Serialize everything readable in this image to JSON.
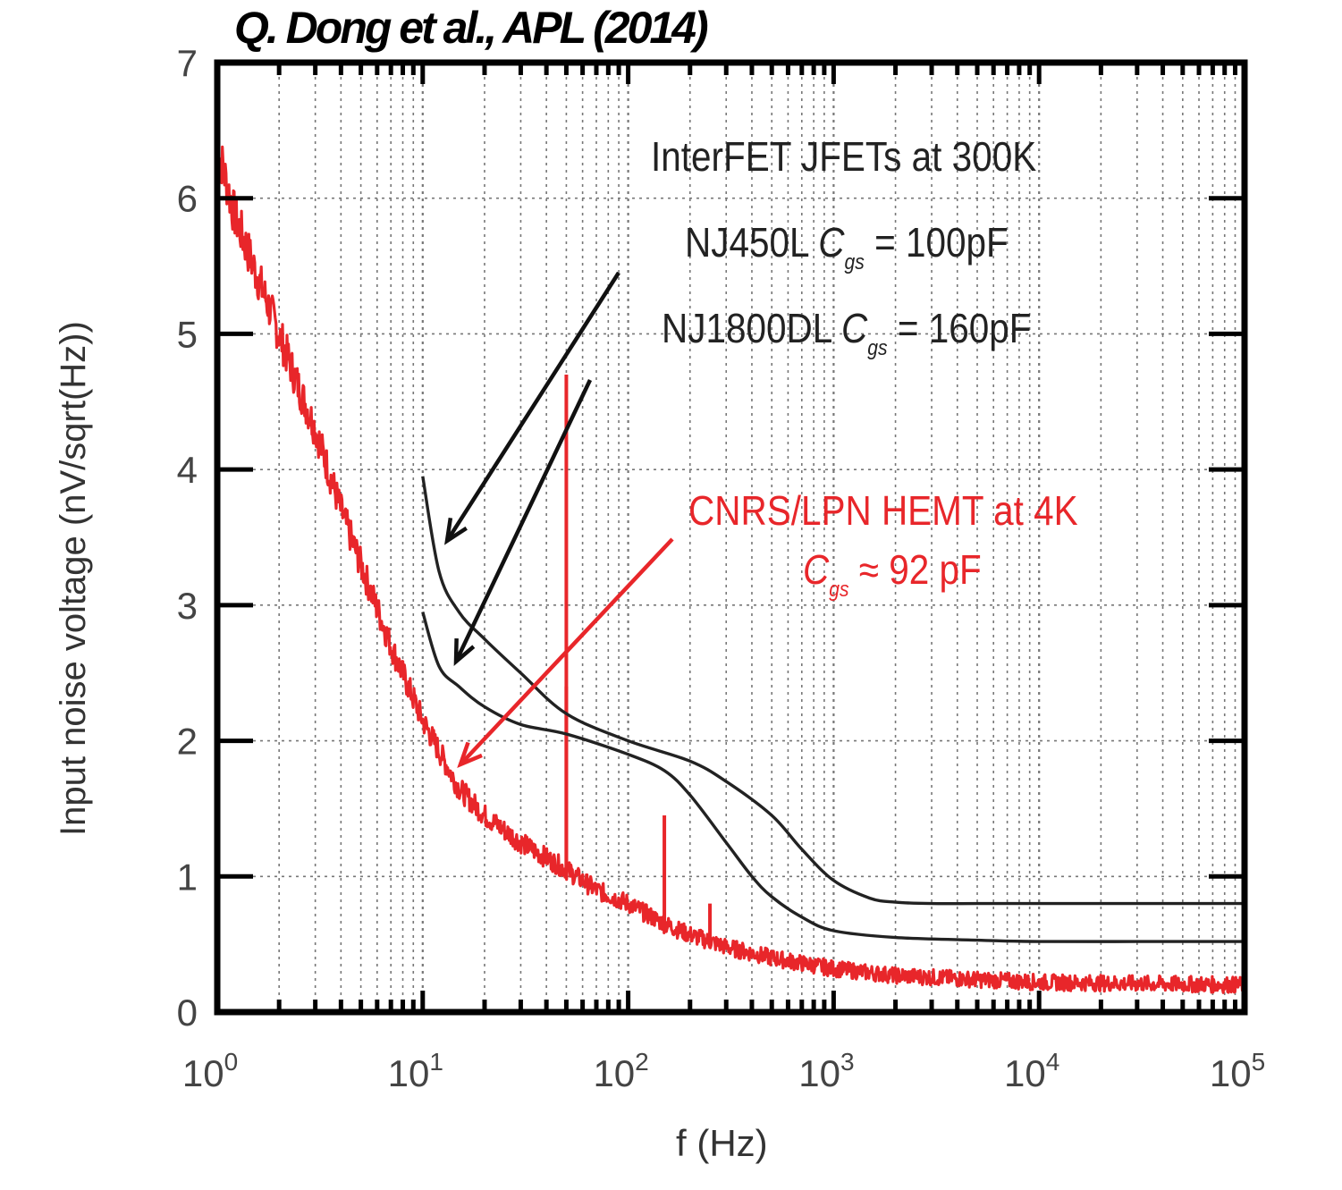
{
  "figure": {
    "title": "Q. Dong et al., APL (2014)",
    "annotations": {
      "jfet_header": "InterFET JFETs at 300K",
      "nj450l": {
        "prefix": "NJ450L ",
        "symbol": "C",
        "subscript": "gs",
        "suffix": " = 100pF"
      },
      "nj1800dl": {
        "prefix": "NJ1800DL ",
        "symbol": "C",
        "subscript": "gs",
        "suffix": " = 160pF"
      },
      "hemt_header": "CNRS/LPN HEMT at 4K",
      "hemt_cgs": {
        "symbol": "C",
        "subscript": "gs",
        "suffix": " ≈ 92 pF"
      }
    }
  },
  "chart_data": {
    "type": "line",
    "title": "Q. Dong et al., APL (2014)",
    "xlabel": "f (Hz)",
    "ylabel": "Input noise voltage (nV/sqrt(Hz))",
    "xscale": "log",
    "xlim": [
      1,
      100000
    ],
    "ylim": [
      0,
      7
    ],
    "x_tick_labels": [
      {
        "base": "10",
        "exp": "0"
      },
      {
        "base": "10",
        "exp": "1"
      },
      {
        "base": "10",
        "exp": "2"
      },
      {
        "base": "10",
        "exp": "3"
      },
      {
        "base": "10",
        "exp": "4"
      },
      {
        "base": "10",
        "exp": "5"
      }
    ],
    "y_ticks": [
      "0",
      "1",
      "2",
      "3",
      "4",
      "5",
      "6",
      "7"
    ],
    "grid": true,
    "series": [
      {
        "color": "#e8262a",
        "x": [
          1,
          1.2,
          1.5,
          2,
          2.5,
          3,
          4,
          5,
          7,
          10,
          15,
          20,
          30,
          50,
          70,
          100,
          150,
          200,
          300,
          500,
          700,
          1000,
          2000,
          5000,
          10000,
          30000,
          100000
        ],
        "y": [
          6.4,
          5.9,
          5.5,
          5.0,
          4.6,
          4.3,
          3.7,
          3.3,
          2.7,
          2.15,
          1.65,
          1.45,
          1.25,
          1.05,
          0.9,
          0.8,
          0.65,
          0.57,
          0.48,
          0.4,
          0.36,
          0.32,
          0.27,
          0.24,
          0.22,
          0.21,
          0.2
        ],
        "spikes": [
          {
            "x": 50,
            "y": 4.7
          },
          {
            "x": 50,
            "y": 2.4
          },
          {
            "x": 150,
            "y": 1.45
          },
          {
            "x": 250,
            "y": 0.8
          }
        ]
      },
      {
        "color": "#222222",
        "x": [
          10,
          12,
          15,
          20,
          30,
          50,
          100,
          200,
          300,
          500,
          700,
          1000,
          1500,
          2000,
          3000,
          5000,
          10000,
          30000,
          100000
        ],
        "y": [
          3.95,
          3.25,
          2.95,
          2.75,
          2.5,
          2.2,
          2.0,
          1.85,
          1.7,
          1.45,
          1.2,
          0.97,
          0.84,
          0.81,
          0.8,
          0.8,
          0.8,
          0.8,
          0.8
        ]
      },
      {
        "color": "#222222",
        "x": [
          10,
          12,
          15,
          20,
          30,
          50,
          100,
          150,
          200,
          300,
          400,
          500,
          700,
          1000,
          2000,
          5000,
          10000,
          30000,
          100000
        ],
        "y": [
          2.95,
          2.55,
          2.4,
          2.25,
          2.12,
          2.05,
          1.9,
          1.78,
          1.6,
          1.25,
          1.0,
          0.85,
          0.7,
          0.6,
          0.55,
          0.53,
          0.52,
          0.52,
          0.52
        ]
      }
    ]
  }
}
